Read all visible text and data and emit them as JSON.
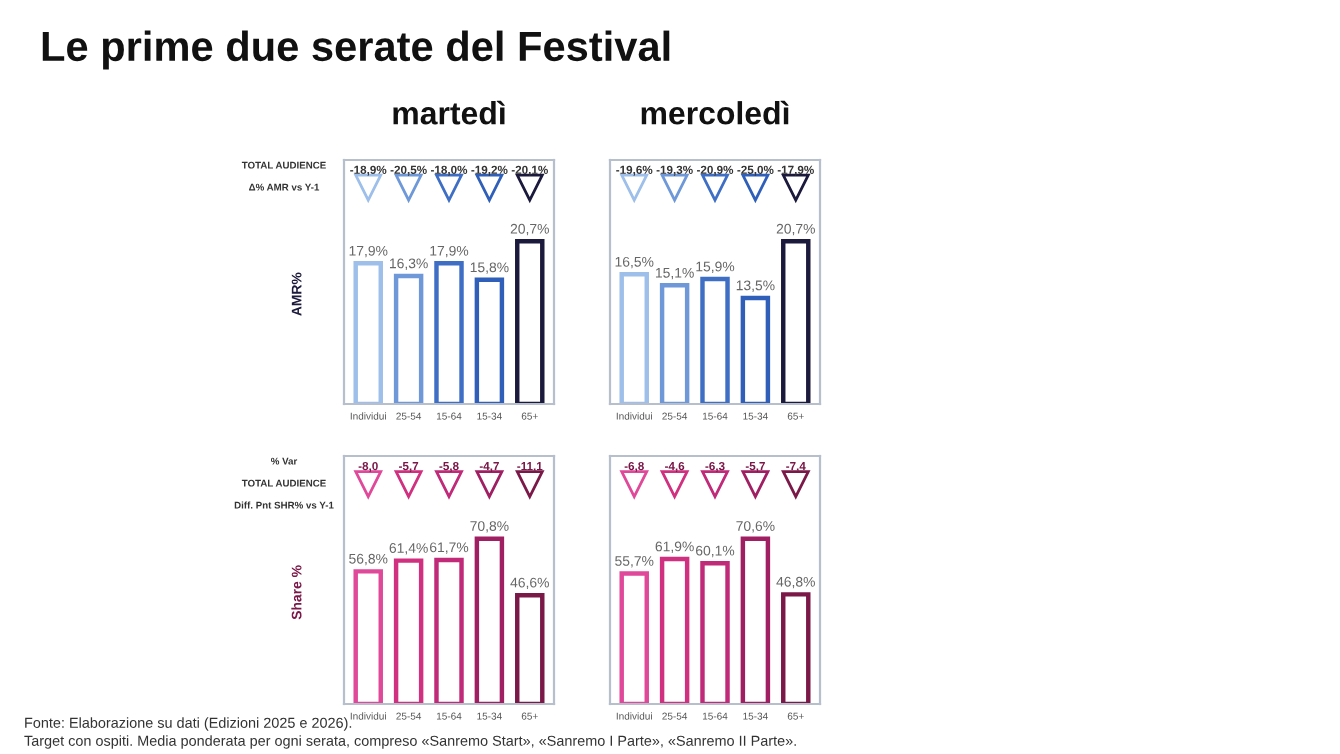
{
  "chart_data": [
    {
      "type": "bar",
      "title": "Le prime due serate del Festival",
      "subtitle": "martedì",
      "ylabel": "AMR%",
      "tick_labels": "x",
      "categories": [
        "Individui",
        "25-54",
        "15-64",
        "15-34",
        "65+"
      ],
      "values": [
        17.9,
        16.3,
        17.9,
        15.8,
        20.7
      ],
      "value_labels": [
        "17,9%",
        "16,3%",
        "17,9%",
        "15,8%",
        "20,7%"
      ],
      "colors": [
        "#9dbfe9",
        "#6e98d8",
        "#3f6fc4",
        "#2f5fb8",
        "#1c1a3c"
      ],
      "annotations": [
        "TOTAL AUDIENCE",
        "Δ% AMR vs Y-1",
        "-18,9%",
        "-20,5%",
        "-18,0%",
        "-19,2%",
        "-20,1%"
      ]
    },
    {
      "type": "bar",
      "title": "mercoledì",
      "tick_labels": "x",
      "categories": [
        "Individui",
        "25-54",
        "15-64",
        "15-34",
        "65+"
      ],
      "values": [
        16.5,
        15.1,
        15.9,
        13.5,
        20.7
      ],
      "value_labels": [
        "16,5%",
        "15,1%",
        "15,9%",
        "13,5%",
        "20,7%"
      ],
      "colors": [
        "#9dbfe9",
        "#6e98d8",
        "#3f6fc4",
        "#2f5fb8",
        "#1c1a3c"
      ],
      "annotations": [
        "-19,6%",
        "-19,3%",
        "-20,9%",
        "-25,0%",
        "-17,9%"
      ]
    },
    {
      "type": "bar",
      "ylabel": "Share %",
      "tick_labels": "x",
      "categories": [
        "Individui",
        "25-54",
        "15-64",
        "15-34",
        "65+"
      ],
      "values": [
        56.8,
        61.4,
        61.7,
        70.8,
        46.6
      ],
      "value_labels": [
        "56,8%",
        "61,4%",
        "61,7%",
        "70,8%",
        "46,6%"
      ],
      "colors": [
        "#e0489a",
        "#d0307f",
        "#c02a78",
        "#a01f62",
        "#7a1848"
      ],
      "annotations": [
        "% Var",
        "TOTAL AUDIENCE",
        "Diff. Pnt SHR% vs Y-1",
        "-8,0",
        "-5,7",
        "-5,8",
        "-4,7",
        "-11,1"
      ]
    },
    {
      "type": "bar",
      "tick_labels": "x",
      "categories": [
        "Individui",
        "25-54",
        "15-64",
        "15-34",
        "65+"
      ],
      "values": [
        55.7,
        61.9,
        60.1,
        70.6,
        46.8
      ],
      "value_labels": [
        "55,7%",
        "61,9%",
        "60,1%",
        "70,6%",
        "46,8%"
      ],
      "colors": [
        "#e0489a",
        "#d0307f",
        "#c02a78",
        "#a01f62",
        "#7a1848"
      ],
      "annotations": [
        "-6,8",
        "-4,6",
        "-6,3",
        "-5,7",
        "-7,4",
        "Fonte: Elaborazione su dati (Edizioni 2025 e 2026).",
        "Target con ospiti. Media ponderata per ogni serata, compreso «Sanremo Start», «Sanremo I Parte», «Sanremo II Parte»."
      ]
    }
  ]
}
